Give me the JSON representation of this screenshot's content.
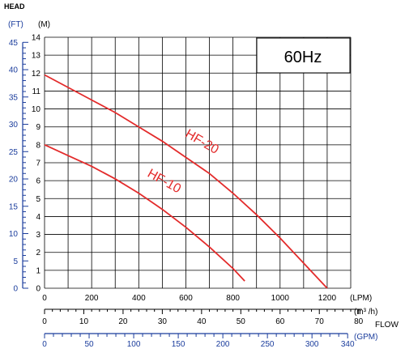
{
  "chart_data": {
    "type": "line",
    "title": "60Hz",
    "head_label": "HEAD",
    "flow_label": "FLOW",
    "y_units": {
      "m": "(M)",
      "ft": "(FT)"
    },
    "x_units": {
      "lpm": "(LPM)",
      "m3h": "(m³ /h)",
      "gpm": "(GPM)"
    },
    "y_m_range": [
      0,
      14
    ],
    "y_m_ticks": [
      0,
      1,
      2,
      3,
      4,
      5,
      6,
      7,
      8,
      9,
      10,
      11,
      12,
      13,
      14
    ],
    "y_ft_ticks": [
      0,
      5,
      10,
      15,
      20,
      25,
      30,
      35,
      40,
      45
    ],
    "x_lpm_range": [
      0,
      1300
    ],
    "x_lpm_ticks": [
      0,
      200,
      400,
      600,
      800,
      1000,
      1200
    ],
    "x_m3h_ticks": [
      0,
      10,
      20,
      30,
      40,
      50,
      60,
      70,
      80
    ],
    "x_gpm_ticks": [
      0,
      20,
      40,
      60,
      80,
      100,
      120,
      140,
      160,
      180,
      200,
      220,
      240,
      260,
      280,
      300,
      320,
      340
    ],
    "x_gpm_labels": [
      0,
      50,
      100,
      150,
      200,
      250,
      300,
      340
    ],
    "grid": true,
    "series": [
      {
        "name": "HF-20",
        "color": "#e32b2b",
        "x": [
          0,
          100,
          200,
          300,
          400,
          500,
          600,
          700,
          800,
          900,
          1000,
          1100,
          1200
        ],
        "y": [
          11.9,
          11.2,
          10.5,
          9.8,
          9.0,
          8.2,
          7.3,
          6.4,
          5.3,
          4.1,
          2.8,
          1.4,
          0
        ]
      },
      {
        "name": "HF-10",
        "color": "#e32b2b",
        "x": [
          0,
          100,
          200,
          300,
          400,
          500,
          600,
          700,
          800,
          850
        ],
        "y": [
          8.0,
          7.4,
          6.8,
          6.1,
          5.3,
          4.4,
          3.4,
          2.3,
          1.1,
          0.4
        ]
      }
    ]
  },
  "colors": {
    "axis_blue": "#1a3c9c",
    "grid": "#000000",
    "curve": "#e32b2b"
  }
}
